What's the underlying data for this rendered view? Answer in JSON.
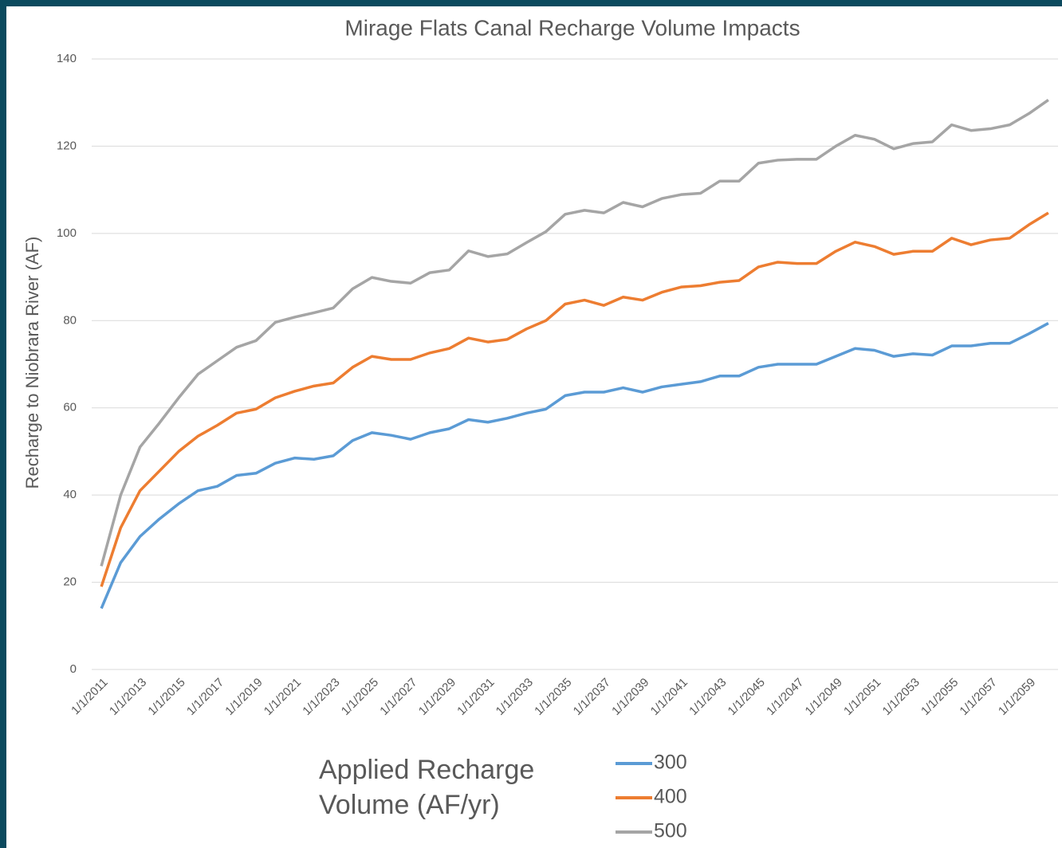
{
  "chart_data": {
    "type": "line",
    "title": "Mirage Flats Canal Recharge Volume Impacts",
    "y_label": "Recharge to Niobrara River (AF)",
    "legend_title": "Applied Recharge Volume (AF/yr)",
    "legend": "bottom",
    "grid": true,
    "categories": [
      "1/1/2011",
      null,
      "1/1/2013",
      null,
      "1/1/2015",
      null,
      "1/1/2017",
      null,
      "1/1/2019",
      null,
      "1/1/2021",
      null,
      "1/1/2023",
      null,
      "1/1/2025",
      null,
      "1/1/2027",
      null,
      "1/1/2029",
      null,
      "1/1/2031",
      null,
      "1/1/2033",
      null,
      "1/1/2035",
      null,
      "1/1/2037",
      null,
      "1/1/2039",
      null,
      "1/1/2041",
      null,
      "1/1/2043",
      null,
      "1/1/2045",
      null,
      "1/1/2047",
      null,
      "1/1/2049",
      null,
      "1/1/2051",
      null,
      "1/1/2053",
      null,
      "1/1/2055",
      null,
      "1/1/2057",
      null,
      "1/1/2059",
      null
    ],
    "ylim": [
      0,
      140
    ],
    "yticks": [
      0,
      20,
      40,
      60,
      80,
      100,
      120,
      140
    ],
    "series": [
      {
        "name": "300",
        "color": "#5b9bd5",
        "values": [
          14,
          24.5,
          30.5,
          34.5,
          38,
          41,
          42,
          44.5,
          45,
          47.3,
          48.5,
          48.2,
          49,
          52.5,
          54.3,
          53.7,
          52.8,
          54.3,
          55.2,
          57.3,
          56.7,
          57.6,
          58.8,
          59.7,
          62.8,
          63.6,
          63.6,
          64.6,
          63.6,
          64.8,
          65.4,
          66,
          67.3,
          67.3,
          69.3,
          70,
          70,
          70,
          71.8,
          73.6,
          73.2,
          71.8,
          72.4,
          72.1,
          74.2,
          74.2,
          74.8,
          74.8,
          77,
          79.4
        ]
      },
      {
        "name": "400",
        "color": "#ed7d31",
        "values": [
          19,
          32.5,
          41,
          45.5,
          50,
          53.5,
          56,
          58.8,
          59.7,
          62.3,
          63.8,
          65,
          65.7,
          69.3,
          71.8,
          71.1,
          71.1,
          72.6,
          73.6,
          76,
          75.1,
          75.7,
          78.1,
          80,
          83.8,
          84.7,
          83.5,
          85.4,
          84.7,
          86.5,
          87.7,
          88,
          88.8,
          89.2,
          92.3,
          93.4,
          93.1,
          93.1,
          95.9,
          98,
          97,
          95.2,
          95.9,
          95.9,
          98.9,
          97.4,
          98.5,
          98.9,
          102,
          104.7
        ]
      },
      {
        "name": "500",
        "color": "#a5a5a5",
        "values": [
          23.7,
          40,
          51,
          56.5,
          62.3,
          67.7,
          70.8,
          73.9,
          75.4,
          79.6,
          80.8,
          81.8,
          82.9,
          87.3,
          89.9,
          89,
          88.6,
          91,
          91.6,
          96,
          94.7,
          95.3,
          97.9,
          100.4,
          104.4,
          105.3,
          104.7,
          107.1,
          106.1,
          108,
          108.9,
          109.2,
          112,
          112,
          116.1,
          116.8,
          117,
          117,
          120,
          122.5,
          121.6,
          119.4,
          120.6,
          121,
          124.9,
          123.6,
          124,
          124.9,
          127.5,
          130.6
        ]
      }
    ]
  }
}
